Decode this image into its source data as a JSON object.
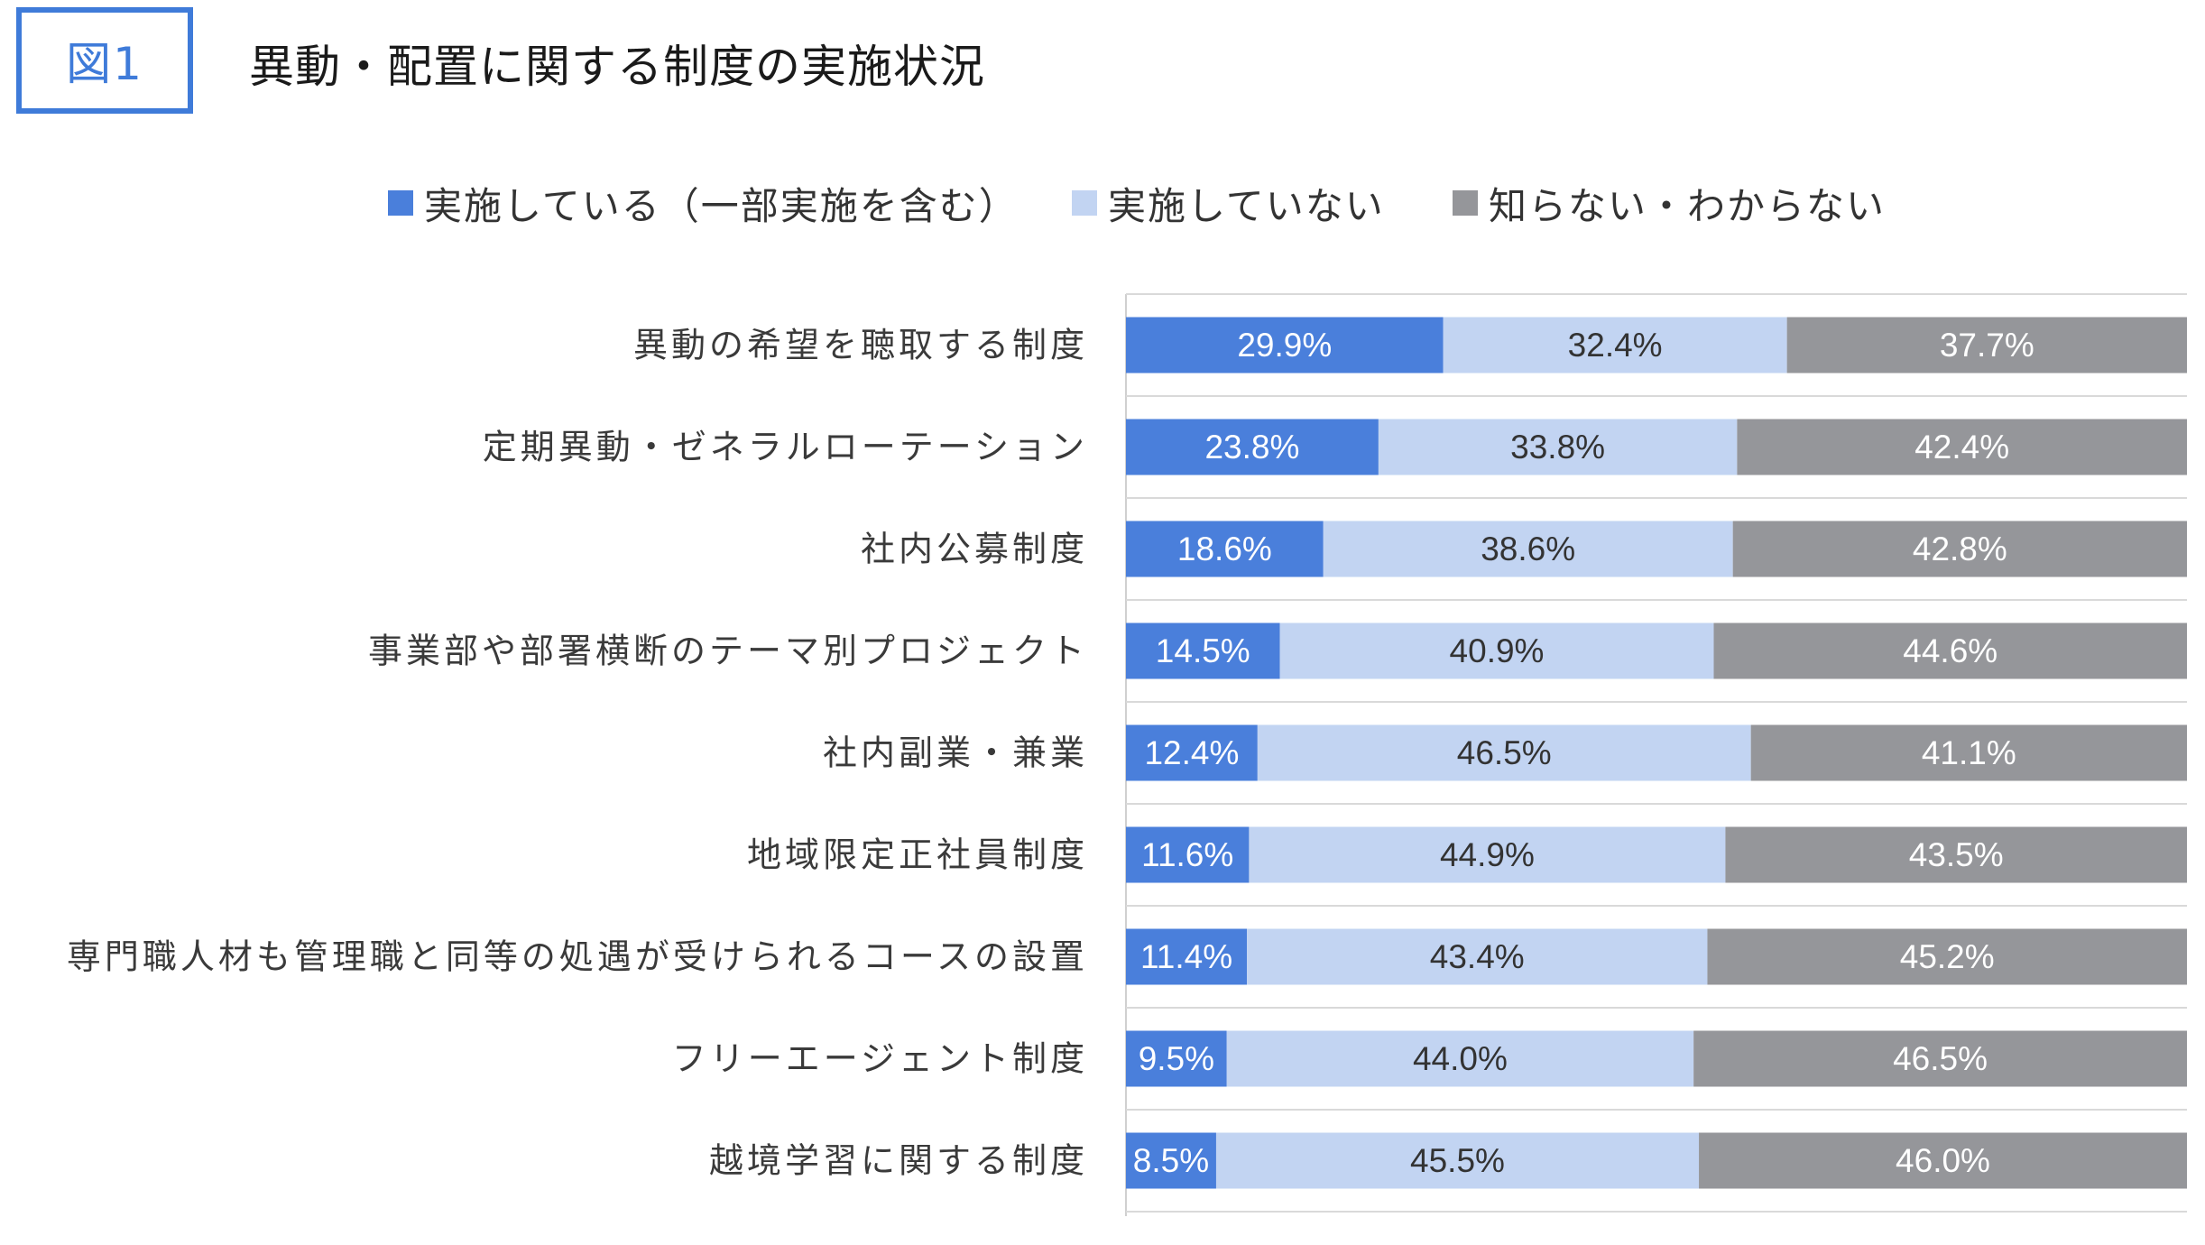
{
  "figure_label": "図1",
  "title": "異動・配置に関する制度の実施状況",
  "chart_data": {
    "type": "bar",
    "orientation": "horizontal",
    "stacked": true,
    "percent_stacked": true,
    "title": "異動・配置に関する制度の実施状況",
    "categories": [
      "異動の希望を聴取する制度",
      "定期異動・ゼネラルローテーション",
      "社内公募制度",
      "事業部や部署横断のテーマ別プロジェクト",
      "社内副業・兼業",
      "地域限定正社員制度",
      "専門職人材も管理職と同等の処遇が受けられるコースの設置",
      "フリーエージェント制度",
      "越境学習に関する制度"
    ],
    "series": [
      {
        "name": "実施している（一部実施を含む）",
        "color": "#4a7fdb",
        "label_color": "#ffffff",
        "values": [
          29.9,
          23.8,
          18.6,
          14.5,
          12.4,
          11.6,
          11.4,
          9.5,
          8.5
        ],
        "labels": [
          "29.9%",
          "23.8%",
          "18.6%",
          "14.5%",
          "12.4%",
          "11.6%",
          "11.4%",
          "9.5%",
          "8.5%"
        ]
      },
      {
        "name": "実施していない",
        "color": "#c2d4f2",
        "label_color": "#333333",
        "values": [
          32.4,
          33.8,
          38.6,
          40.9,
          46.5,
          44.9,
          43.4,
          44.0,
          45.5
        ],
        "labels": [
          "32.4%",
          "33.8%",
          "38.6%",
          "40.9%",
          "46.5%",
          "44.9%",
          "43.4%",
          "44.0%",
          "45.5%"
        ]
      },
      {
        "name": "知らない・わからない",
        "color": "#95969a",
        "label_color": "#ffffff",
        "values": [
          37.7,
          42.4,
          42.8,
          44.6,
          41.1,
          43.5,
          45.2,
          46.5,
          46.0
        ],
        "labels": [
          "37.7%",
          "42.4%",
          "42.8%",
          "44.6%",
          "41.1%",
          "43.5%",
          "45.2%",
          "46.5%",
          "46.0%"
        ]
      }
    ],
    "xlim": [
      0,
      100
    ],
    "gridlines": "horizontal separators",
    "legend_position": "top"
  }
}
